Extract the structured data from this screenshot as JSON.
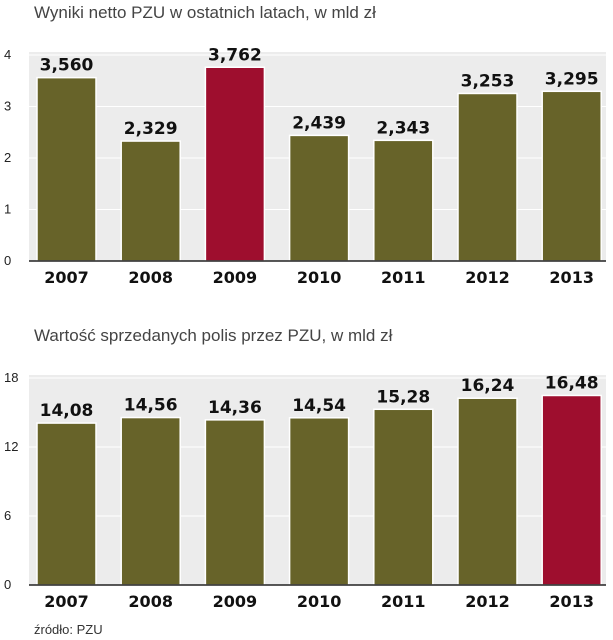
{
  "colors": {
    "bar": "#676329",
    "highlight": "#9e0e2e",
    "panel": "#ececec"
  },
  "source": "źródło: PZU",
  "chart_data": [
    {
      "type": "bar",
      "title": "Wyniki netto PZU w ostatnich latach, w mld zł",
      "categories": [
        "2007",
        "2008",
        "2009",
        "2010",
        "2011",
        "2012",
        "2013"
      ],
      "values": [
        3.56,
        2.329,
        3.762,
        2.439,
        2.343,
        3.253,
        3.295
      ],
      "value_labels": [
        "3,560",
        "2,329",
        "3,762",
        "2,439",
        "2,343",
        "3,253",
        "3,295"
      ],
      "highlight": "2009",
      "ylim": [
        0,
        4
      ],
      "yticks": [
        "0",
        "1",
        "2",
        "3",
        "4"
      ],
      "grid": true
    },
    {
      "type": "bar",
      "title": "Wartość sprzedanych polis przez PZU, w mld zł",
      "categories": [
        "2007",
        "2008",
        "2009",
        "2010",
        "2011",
        "2012",
        "2013"
      ],
      "values": [
        14.08,
        14.56,
        14.36,
        14.54,
        15.28,
        16.24,
        16.48
      ],
      "value_labels": [
        "14,08",
        "14,56",
        "14,36",
        "14,54",
        "15,28",
        "16,24",
        "16,48"
      ],
      "highlight": "2013",
      "ylim": [
        0,
        18
      ],
      "yticks": [
        "0",
        "6",
        "12",
        "18"
      ],
      "grid": true
    }
  ]
}
